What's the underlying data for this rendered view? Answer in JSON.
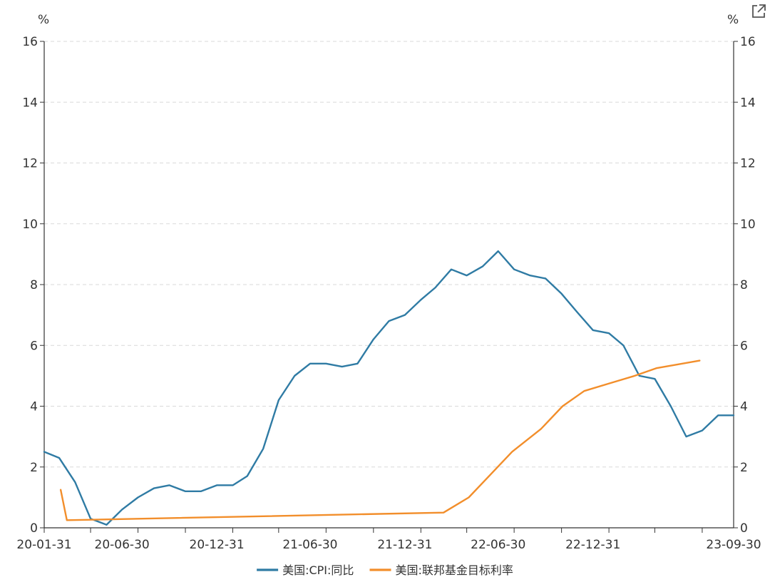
{
  "chart_data": {
    "type": "line",
    "title": "",
    "xlabel": "",
    "ylabel_left": "%",
    "ylabel_right": "%",
    "ylim": [
      0,
      16
    ],
    "yticks": [
      0,
      2,
      4,
      6,
      8,
      10,
      12,
      14,
      16
    ],
    "grid": true,
    "legend_position": "bottom",
    "xlim": [
      "2020-01-31",
      "2023-09-30"
    ],
    "x_tick_labels": [
      {
        "date": "2020-01-31",
        "label": "20-01-31"
      },
      {
        "date": "2020-06-30",
        "label": "20-06-30"
      },
      {
        "date": "2020-12-31",
        "label": "20-12-31"
      },
      {
        "date": "2021-06-30",
        "label": "21-06-30"
      },
      {
        "date": "2021-12-31",
        "label": "21-12-31"
      },
      {
        "date": "2022-06-30",
        "label": "22-06-30"
      },
      {
        "date": "2022-12-31",
        "label": "22-12-31"
      },
      {
        "date": "2023-09-30",
        "label": "23-09-30"
      }
    ],
    "series": [
      {
        "name": "美国:CPI:同比",
        "color": "#2f7ba4",
        "points": [
          [
            "2020-01-31",
            2.5
          ],
          [
            "2020-02-29",
            2.3
          ],
          [
            "2020-03-31",
            1.5
          ],
          [
            "2020-04-30",
            0.3
          ],
          [
            "2020-05-31",
            0.1
          ],
          [
            "2020-06-30",
            0.6
          ],
          [
            "2020-07-31",
            1.0
          ],
          [
            "2020-08-31",
            1.3
          ],
          [
            "2020-09-30",
            1.4
          ],
          [
            "2020-10-31",
            1.2
          ],
          [
            "2020-11-30",
            1.2
          ],
          [
            "2020-12-31",
            1.4
          ],
          [
            "2021-01-31",
            1.4
          ],
          [
            "2021-02-28",
            1.7
          ],
          [
            "2021-03-31",
            2.6
          ],
          [
            "2021-04-30",
            4.2
          ],
          [
            "2021-05-31",
            5.0
          ],
          [
            "2021-06-30",
            5.4
          ],
          [
            "2021-07-31",
            5.4
          ],
          [
            "2021-08-31",
            5.3
          ],
          [
            "2021-09-30",
            5.4
          ],
          [
            "2021-10-31",
            6.2
          ],
          [
            "2021-11-30",
            6.8
          ],
          [
            "2021-12-31",
            7.0
          ],
          [
            "2022-01-31",
            7.5
          ],
          [
            "2022-02-28",
            7.9
          ],
          [
            "2022-03-31",
            8.5
          ],
          [
            "2022-04-30",
            8.3
          ],
          [
            "2022-05-31",
            8.6
          ],
          [
            "2022-06-30",
            9.1
          ],
          [
            "2022-07-31",
            8.5
          ],
          [
            "2022-08-31",
            8.3
          ],
          [
            "2022-09-30",
            8.2
          ],
          [
            "2022-10-31",
            7.7
          ],
          [
            "2022-11-30",
            7.1
          ],
          [
            "2022-12-31",
            6.5
          ],
          [
            "2023-01-31",
            6.4
          ],
          [
            "2023-02-28",
            6.0
          ],
          [
            "2023-03-31",
            5.0
          ],
          [
            "2023-04-30",
            4.9
          ],
          [
            "2023-05-31",
            4.0
          ],
          [
            "2023-06-30",
            3.0
          ],
          [
            "2023-07-31",
            3.2
          ],
          [
            "2023-08-31",
            3.7
          ],
          [
            "2023-09-30",
            3.7
          ]
        ]
      },
      {
        "name": "美国:联邦基金目标利率",
        "color": "#f28e2b",
        "points": [
          [
            "2020-03-03",
            1.25
          ],
          [
            "2020-03-15",
            0.25
          ],
          [
            "2022-03-16",
            0.5
          ],
          [
            "2022-05-04",
            1.0
          ],
          [
            "2022-06-15",
            1.75
          ],
          [
            "2022-07-27",
            2.5
          ],
          [
            "2022-09-21",
            3.25
          ],
          [
            "2022-11-02",
            4.0
          ],
          [
            "2022-12-14",
            4.5
          ],
          [
            "2023-02-01",
            4.75
          ],
          [
            "2023-03-22",
            5.0
          ],
          [
            "2023-05-03",
            5.25
          ],
          [
            "2023-07-26",
            5.5
          ]
        ]
      }
    ]
  },
  "icons": {
    "export": "external-link-icon"
  }
}
